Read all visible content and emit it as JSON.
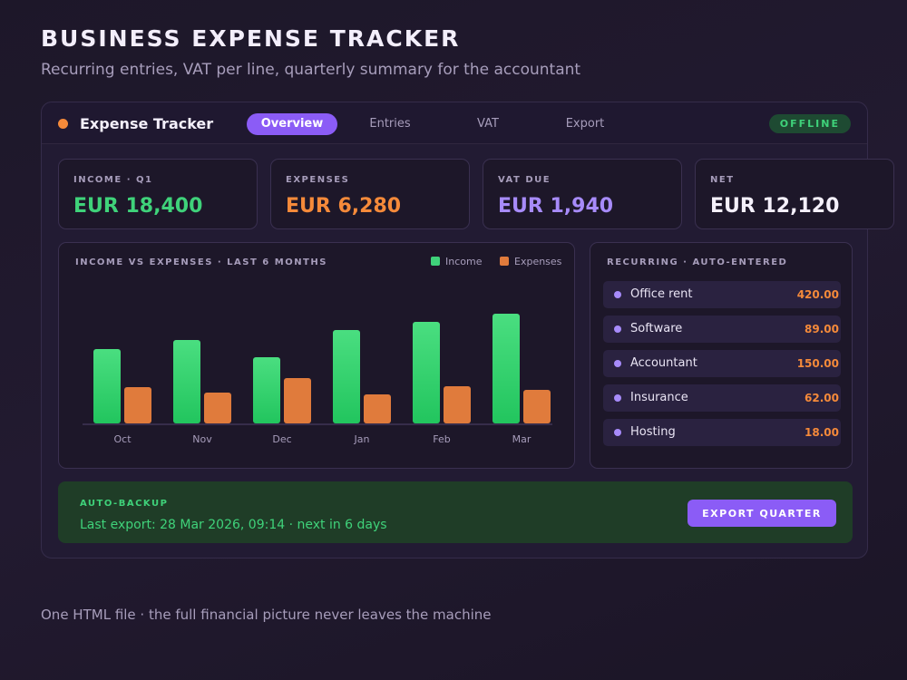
{
  "header": {
    "title": "BUSINESS EXPENSE TRACKER",
    "subtitle": "Recurring entries, VAT per line, quarterly summary for the accountant"
  },
  "app": {
    "brand": "Expense Tracker",
    "brand_dot_color": "#f58a3a",
    "tabs": [
      {
        "label": "Overview",
        "active": true
      },
      {
        "label": "Entries",
        "active": false
      },
      {
        "label": "VAT",
        "active": false
      },
      {
        "label": "Export",
        "active": false
      }
    ],
    "status": "OFFLINE"
  },
  "kpis": [
    {
      "label": "INCOME · Q1",
      "value": "EUR 18,400",
      "color": "#3fd27a"
    },
    {
      "label": "EXPENSES",
      "value": "EUR 6,280",
      "color": "#f58a3a"
    },
    {
      "label": "VAT DUE",
      "value": "EUR 1,940",
      "color": "#a78bfa"
    },
    {
      "label": "NET",
      "value": "EUR 12,120",
      "color": "#f4f0fb"
    }
  ],
  "chart_panel": {
    "title": "INCOME VS EXPENSES · LAST 6 MONTHS"
  },
  "chart_data": {
    "type": "bar",
    "categories": [
      "Oct",
      "Nov",
      "Dec",
      "Jan",
      "Feb",
      "Mar"
    ],
    "series": [
      {
        "name": "Income",
        "values": [
          82,
          92,
          73,
          103,
          112,
          121
        ],
        "color": "#3fd27a"
      },
      {
        "name": "Expenses",
        "values": [
          40,
          34,
          50,
          32,
          41,
          37
        ],
        "color": "#e07b3c"
      }
    ],
    "ylim": [
      0,
      130
    ],
    "grid": false,
    "legend": "top-right"
  },
  "recurring": {
    "title": "RECURRING · AUTO-ENTERED",
    "items": [
      {
        "label": "Office rent",
        "amount": "420.00"
      },
      {
        "label": "Software",
        "amount": "89.00"
      },
      {
        "label": "Accountant",
        "amount": "150.00"
      },
      {
        "label": "Insurance",
        "amount": "62.00"
      },
      {
        "label": "Hosting",
        "amount": "18.00"
      }
    ]
  },
  "backup": {
    "title": "AUTO-BACKUP",
    "text": "Last export: 28 Mar 2026, 09:14 · next in 6 days",
    "button": "EXPORT QUARTER"
  },
  "footer": "One HTML file · the full financial picture never leaves the machine"
}
